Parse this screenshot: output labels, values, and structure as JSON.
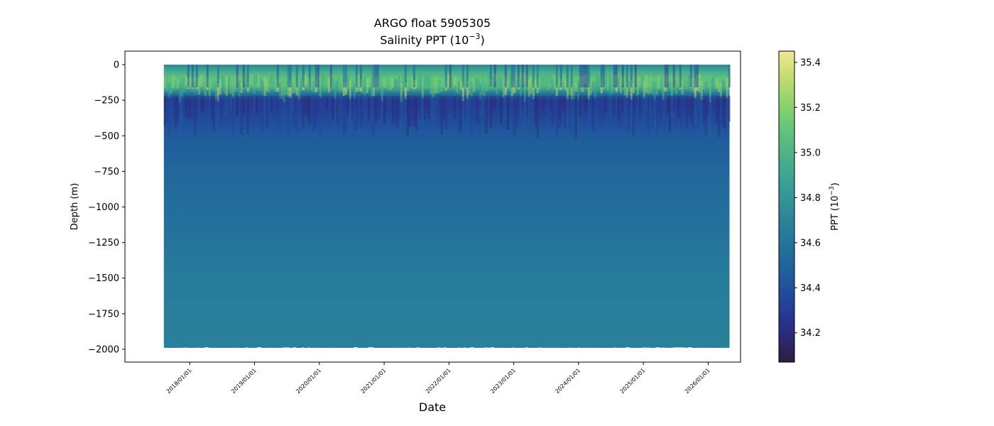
{
  "chart_data": {
    "type": "heatmap",
    "title": "ARGO float 5905305",
    "subtitle_prefix": "Salinity PPT (10",
    "subtitle_exponent": "−3",
    "subtitle_suffix": ")",
    "xlabel": "Date",
    "ylabel": "Depth (m)",
    "x_tick_labels": [
      "2018/01/01",
      "2019/01/01",
      "2020/01/01",
      "2021/01/01",
      "2022/01/01",
      "2023/01/01",
      "2024/01/01",
      "2025/01/01",
      "2026/01/01"
    ],
    "x_range_years": [
      2017.0,
      2026.5
    ],
    "data_x_range_years": [
      2017.6,
      2026.33
    ],
    "y_ticks": [
      0,
      -250,
      -500,
      -750,
      -1000,
      -1250,
      -1500,
      -1750,
      -2000
    ],
    "y_tick_labels": [
      "0",
      "−250",
      "−500",
      "−750",
      "−1000",
      "−1250",
      "−1500",
      "−1750",
      "−2000"
    ],
    "ylim": [
      -2090,
      95
    ],
    "data_depth_range": [
      0,
      -1990
    ],
    "colorbar": {
      "label_prefix": "PPT (10",
      "label_exponent": "−3",
      "label_suffix": ")",
      "vmin": 34.07,
      "vmax": 35.45,
      "ticks": [
        34.2,
        34.4,
        34.6,
        34.8,
        35.0,
        35.2,
        35.4
      ],
      "tick_labels": [
        "34.2",
        "34.4",
        "34.6",
        "34.8",
        "35.0",
        "35.2",
        "35.4"
      ]
    },
    "profile": {
      "depths": [
        0,
        -50,
        -100,
        -150,
        -200,
        -250,
        -300,
        -400,
        -500,
        -750,
        -1000,
        -1250,
        -1500,
        -1750,
        -2000
      ],
      "salinity": [
        34.72,
        34.95,
        35.1,
        35.05,
        34.62,
        34.28,
        34.3,
        34.38,
        34.45,
        34.52,
        34.56,
        34.6,
        34.64,
        34.66,
        34.67
      ]
    },
    "colormap": [
      "#2d1e3e",
      "#2a2c7b",
      "#23419a",
      "#1f5a9c",
      "#23709c",
      "#2b849a",
      "#369997",
      "#44ad8d",
      "#5bc07d",
      "#86d06d",
      "#bcdc6f",
      "#f3e78f"
    ]
  }
}
